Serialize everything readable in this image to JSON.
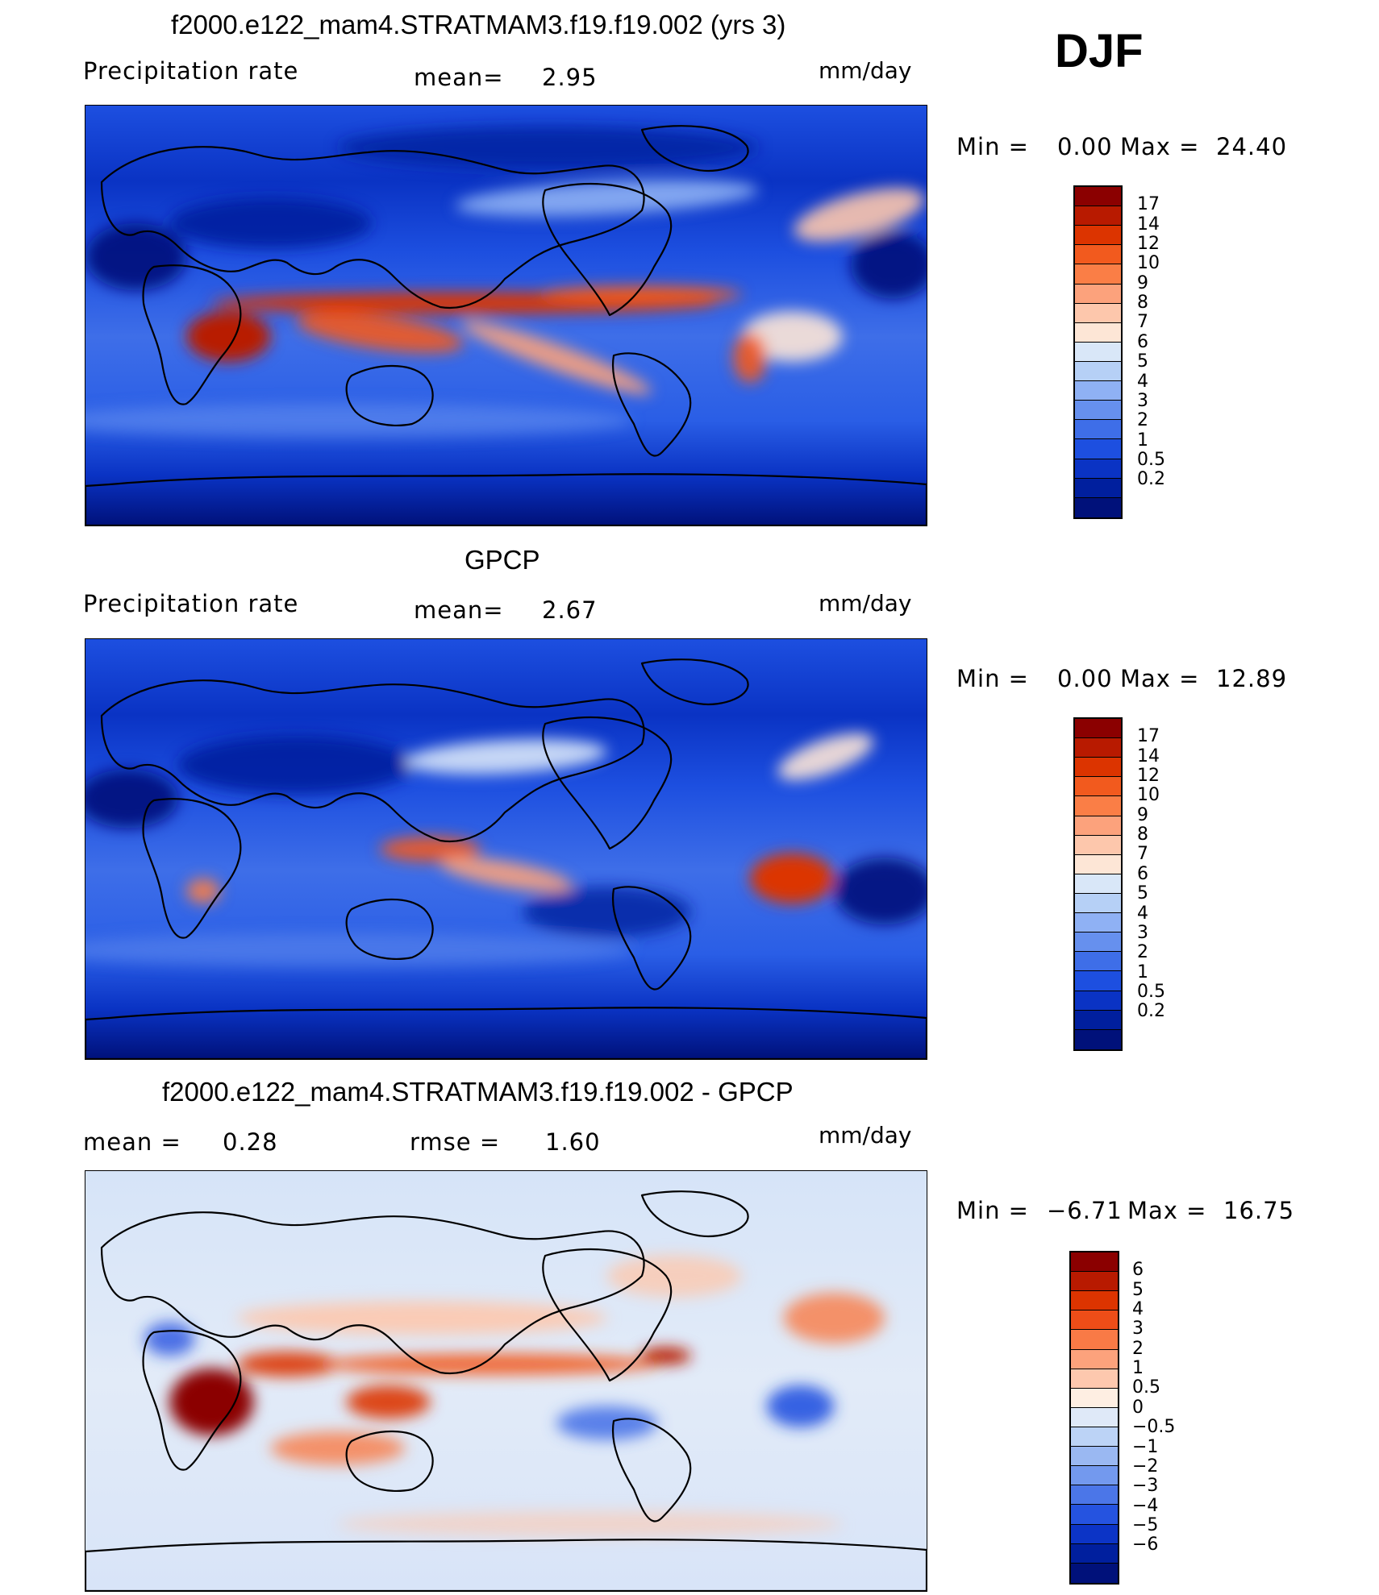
{
  "season": "DJF",
  "panels": [
    {
      "title": "f2000.e122_mam4.STRATMAM3.f19.f19.002 (yrs 3)",
      "left_label": "Precipitation  rate",
      "stat1_label": "mean=",
      "stat1_value": "2.95",
      "units": "mm/day",
      "min_label": "Min  =",
      "min_value": "0.00",
      "max_label": "Max  =",
      "max_value": "24.40",
      "field": "model",
      "colorbar": {
        "colors": [
          "#8b0000",
          "#b81a00",
          "#dc3400",
          "#f25a1e",
          "#fa7e46",
          "#fca27c",
          "#fdc7ac",
          "#fde6d6",
          "#d9e7f8",
          "#b6d0f6",
          "#8fb1f4",
          "#6690ee",
          "#3e6ee8",
          "#1d4fe0",
          "#0a33c4",
          "#001f9e",
          "#00117a"
        ],
        "labels": [
          "17",
          "14",
          "12",
          "10",
          "9",
          "8",
          "7",
          "6",
          "5",
          "4",
          "3",
          "2",
          "1",
          "0.5",
          "0.2"
        ]
      }
    },
    {
      "title": "GPCP",
      "left_label": "Precipitation  rate",
      "stat1_label": "mean=",
      "stat1_value": "2.67",
      "units": "mm/day",
      "min_label": "Min  =",
      "min_value": "0.00",
      "max_label": "Max  =",
      "max_value": "12.89",
      "field": "obs",
      "colorbar": {
        "colors": [
          "#8b0000",
          "#b81a00",
          "#dc3400",
          "#f25a1e",
          "#fa7e46",
          "#fca27c",
          "#fdc7ac",
          "#fde6d6",
          "#d9e7f8",
          "#b6d0f6",
          "#8fb1f4",
          "#6690ee",
          "#3e6ee8",
          "#1d4fe0",
          "#0a33c4",
          "#001f9e",
          "#00117a"
        ],
        "labels": [
          "17",
          "14",
          "12",
          "10",
          "9",
          "8",
          "7",
          "6",
          "5",
          "4",
          "3",
          "2",
          "1",
          "0.5",
          "0.2"
        ]
      }
    },
    {
      "title": "f2000.e122_mam4.STRATMAM3.f19.f19.002 - GPCP",
      "left_label": "mean  =",
      "left_value": "0.28",
      "stat1_label": "rmse  =",
      "stat1_value": "1.60",
      "units": "mm/day",
      "min_label": "Min  =",
      "min_value": "−6.71",
      "max_label": "Max  =",
      "max_value": "16.75",
      "field": "diff",
      "colorbar": {
        "colors": [
          "#8b0000",
          "#b81a00",
          "#dc3400",
          "#ee4d18",
          "#f97a46",
          "#fca27c",
          "#fdc8ae",
          "#feeee2",
          "#dfe9f8",
          "#bcd3f6",
          "#9ab8f2",
          "#7399ee",
          "#4b76e8",
          "#2553e0",
          "#0c34c6",
          "#001f9e",
          "#00117a"
        ],
        "labels": [
          "6",
          "5",
          "4",
          "3",
          "2",
          "1",
          "0.5",
          "0",
          "−0.5",
          "−1",
          "−2",
          "−3",
          "−4",
          "−5",
          "−6"
        ]
      }
    }
  ]
}
